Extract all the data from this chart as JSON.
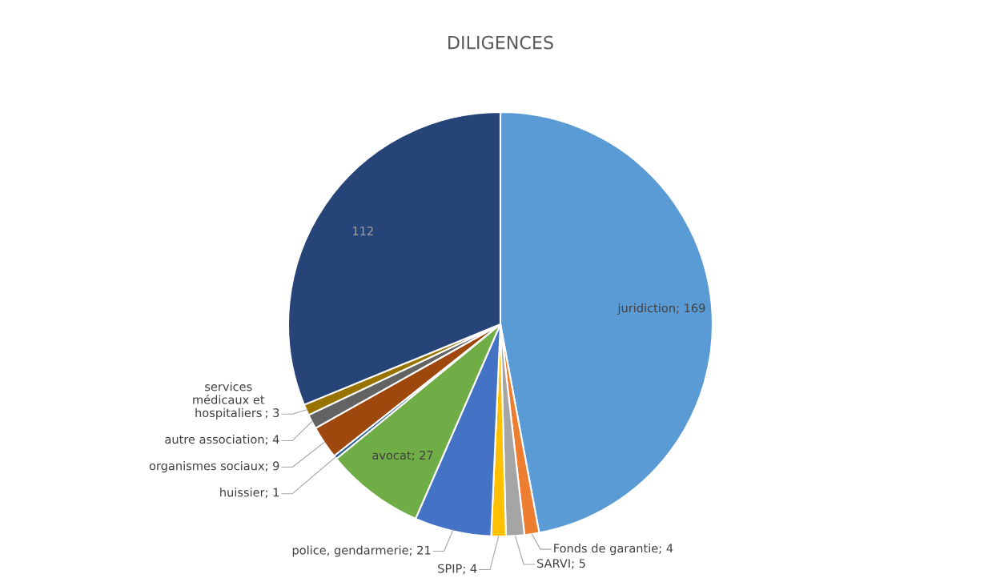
{
  "chart_data": {
    "type": "pie",
    "title": "DILIGENCES",
    "categories": [
      "juridiction",
      "Fonds de garantie",
      "SARVI",
      "SPIP",
      "police, gendarmerie",
      "avocat",
      "huissier",
      "organismes sociaux",
      "autre association",
      "services médicaux et hospitaliers",
      null
    ],
    "values": [
      169,
      4,
      5,
      4,
      21,
      27,
      1,
      9,
      4,
      3,
      112
    ],
    "colors": [
      "#5b9bd5",
      "#ed7d31",
      "#a5a5a5",
      "#ffc000",
      "#4472c4",
      "#70ad47",
      "#255e91",
      "#9e480e",
      "#636363",
      "#997300",
      "#264478"
    ],
    "value_labels": [
      "; 169",
      "; 4",
      "; 5",
      "; 4",
      "; 21",
      "; 27",
      "; 1",
      "; 9",
      "; 4",
      "; 3",
      "112"
    ],
    "legend": false
  }
}
